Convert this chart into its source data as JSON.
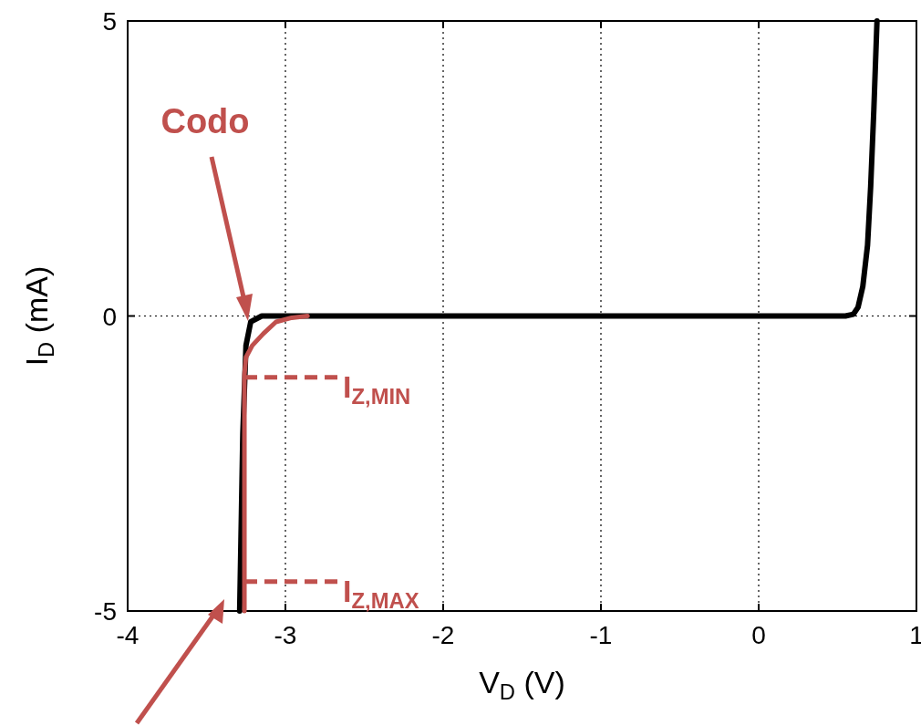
{
  "chart_data": {
    "type": "line",
    "xlabel": "V$_{D}$ (V)",
    "ylabel": "I$_{D}$ (mA)",
    "xlim": [
      -4,
      1
    ],
    "ylim": [
      -5,
      5
    ],
    "xticks": [
      -4,
      -3,
      -2,
      -1,
      0,
      1
    ],
    "yticks": [
      -5,
      0,
      5
    ],
    "grid": true,
    "series": [
      {
        "color": "#000000",
        "x": [
          -3.29,
          -3.28,
          -3.27,
          -3.25,
          -3.22,
          -3.15,
          0.55,
          0.6,
          0.63,
          0.66,
          0.69,
          0.71,
          0.73,
          0.75
        ],
        "values": [
          -5,
          -3.5,
          -2,
          -0.5,
          -0.1,
          0,
          0,
          0.03,
          0.15,
          0.5,
          1.2,
          2.2,
          3.5,
          5
        ]
      },
      {
        "color": "#c0504d",
        "x": [
          -3.26,
          -3.26,
          -3.25,
          -3.21,
          -3.14,
          -3.06,
          -2.96,
          -2.86
        ],
        "values": [
          -5,
          -1,
          -0.7,
          -0.5,
          -0.3,
          -0.1,
          -0.03,
          0
        ]
      },
      {
        "color": "#c0504d",
        "line_style": "dashed",
        "x": [
          -3.26,
          -2.67
        ],
        "values": [
          -1.04,
          -1.04
        ]
      },
      {
        "color": "#c0504d",
        "line_style": "dashed",
        "x": [
          -3.26,
          -2.67
        ],
        "values": [
          -4.5,
          -4.5
        ]
      }
    ],
    "annotations": [
      "Codo",
      {
        "text": "I$_{Z,MIN}$",
        "x": -2.67,
        "y": -1.04
      },
      {
        "text": "I$_{Z,MAX}$",
        "x": -2.67,
        "y": -4.5
      }
    ]
  }
}
